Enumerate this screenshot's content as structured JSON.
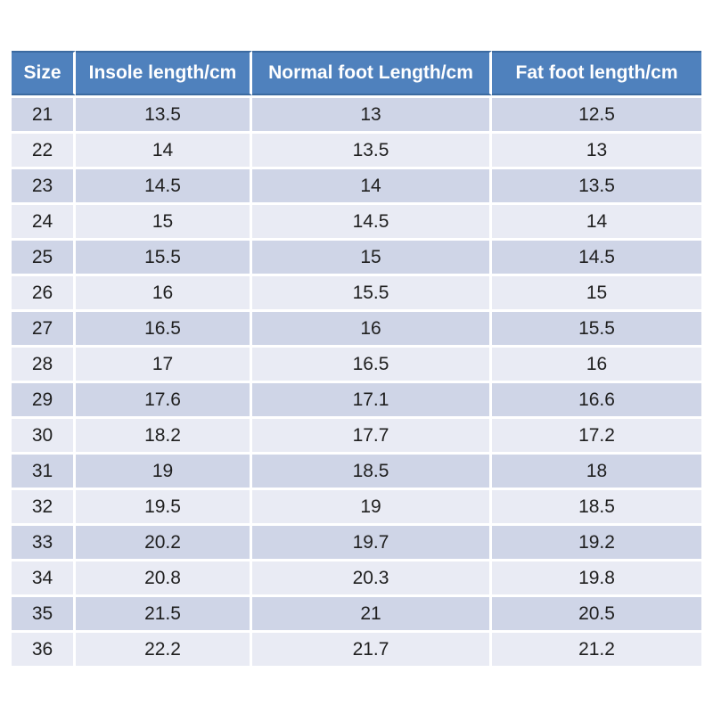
{
  "colors": {
    "header_bg": "#4f81bd",
    "header_border": "#3b6aa0",
    "header_text": "#ffffff",
    "row_odd": "#cfd5e7",
    "row_even": "#e9ebf4",
    "cell_text": "#1f1f1f",
    "page_bg": "#ffffff"
  },
  "chart_data": {
    "type": "table",
    "columns": [
      "Size",
      "Insole length/cm",
      "Normal foot Length/cm",
      "Fat foot length/cm"
    ],
    "rows": [
      [
        "21",
        "13.5",
        "13",
        "12.5"
      ],
      [
        "22",
        "14",
        "13.5",
        "13"
      ],
      [
        "23",
        "14.5",
        "14",
        "13.5"
      ],
      [
        "24",
        "15",
        "14.5",
        "14"
      ],
      [
        "25",
        "15.5",
        "15",
        "14.5"
      ],
      [
        "26",
        "16",
        "15.5",
        "15"
      ],
      [
        "27",
        "16.5",
        "16",
        "15.5"
      ],
      [
        "28",
        "17",
        "16.5",
        "16"
      ],
      [
        "29",
        "17.6",
        "17.1",
        "16.6"
      ],
      [
        "30",
        "18.2",
        "17.7",
        "17.2"
      ],
      [
        "31",
        "19",
        "18.5",
        "18"
      ],
      [
        "32",
        "19.5",
        "19",
        "18.5"
      ],
      [
        "33",
        "20.2",
        "19.7",
        "19.2"
      ],
      [
        "34",
        "20.8",
        "20.3",
        "19.8"
      ],
      [
        "35",
        "21.5",
        "21",
        "20.5"
      ],
      [
        "36",
        "22.2",
        "21.7",
        "21.2"
      ]
    ]
  }
}
